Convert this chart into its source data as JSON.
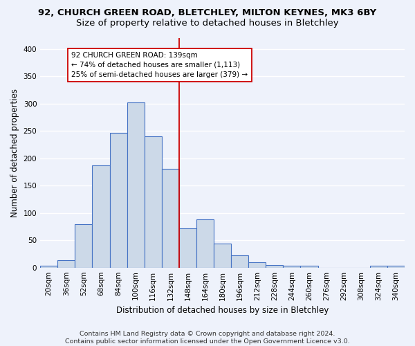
{
  "title": "92, CHURCH GREEN ROAD, BLETCHLEY, MILTON KEYNES, MK3 6BY",
  "subtitle": "Size of property relative to detached houses in Bletchley",
  "xlabel": "Distribution of detached houses by size in Bletchley",
  "ylabel": "Number of detached properties",
  "footer_line1": "Contains HM Land Registry data © Crown copyright and database right 2024.",
  "footer_line2": "Contains public sector information licensed under the Open Government Licence v3.0.",
  "bin_labels": [
    "20sqm",
    "36sqm",
    "52sqm",
    "68sqm",
    "84sqm",
    "100sqm",
    "116sqm",
    "132sqm",
    "148sqm",
    "164sqm",
    "180sqm",
    "196sqm",
    "212sqm",
    "228sqm",
    "244sqm",
    "260sqm",
    "276sqm",
    "292sqm",
    "308sqm",
    "324sqm",
    "340sqm"
  ],
  "bar_values": [
    4,
    14,
    80,
    187,
    247,
    302,
    240,
    181,
    72,
    88,
    44,
    23,
    10,
    5,
    3,
    3,
    0,
    0,
    0,
    3,
    3
  ],
  "bar_color": "#ccd9e8",
  "bar_edge_color": "#4472c4",
  "vline_x": 7.5,
  "vline_color": "#cc0000",
  "annotation_text": "92 CHURCH GREEN ROAD: 139sqm\n← 74% of detached houses are smaller (1,113)\n25% of semi-detached houses are larger (379) →",
  "annotation_box_color": "#ffffff",
  "annotation_box_edge": "#cc0000",
  "ylim": [
    0,
    420
  ],
  "yticks": [
    0,
    50,
    100,
    150,
    200,
    250,
    300,
    350,
    400
  ],
  "background_color": "#eef2fb",
  "grid_color": "#ffffff",
  "title_fontsize": 9.5,
  "subtitle_fontsize": 9.5,
  "axis_label_fontsize": 8.5,
  "tick_fontsize": 7.5,
  "footer_fontsize": 6.8,
  "annot_fontsize": 7.5
}
